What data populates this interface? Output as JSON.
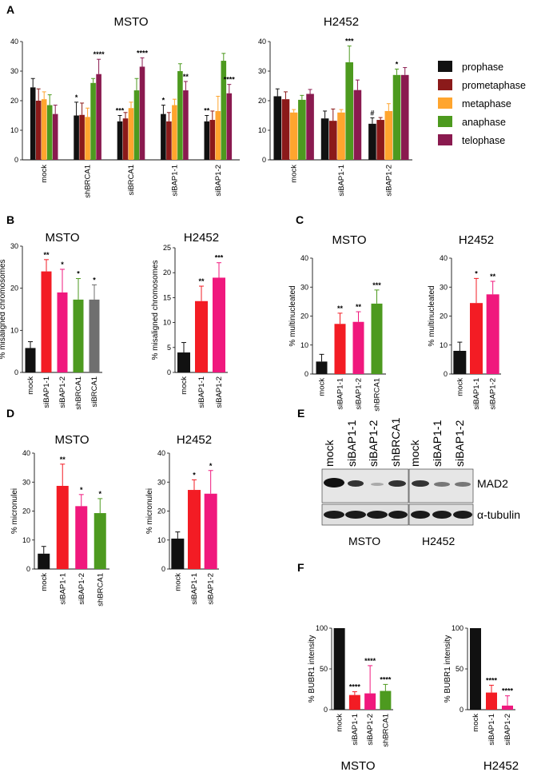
{
  "colors": {
    "black": "#111111",
    "darkred": "#8b1a1a",
    "orange": "#ffa52e",
    "green": "#4d9a1f",
    "maroon": "#8a1a4f",
    "red": "#f31c24",
    "pink": "#f0187d",
    "gray": "#6f6f6f"
  },
  "panels": {
    "A": "A",
    "B": "B",
    "C": "C",
    "D": "D",
    "E": "E",
    "F": "F"
  },
  "legend": [
    "prophase",
    "prometaphase",
    "metaphase",
    "anaphase",
    "telophase"
  ],
  "western": {
    "lanes_msto": [
      "mock",
      "siBAP1-1",
      "siBAP1-2",
      "shBRCA1"
    ],
    "lanes_h2452": [
      "mock",
      "siBAP1-1",
      "siBAP1-2"
    ],
    "row1": "MAD2",
    "row2": "α-tubulin",
    "cell1": "MSTO",
    "cell2": "H2452"
  },
  "chart_data": [
    {
      "id": "A1",
      "type": "bar",
      "title": "MSTO",
      "ylabel": "",
      "ylim": [
        0,
        40
      ],
      "ticks": [
        0,
        10,
        20,
        30,
        40
      ],
      "categories": [
        "mock",
        "shBRCA1",
        "siBRCA1",
        "siBAP1-1",
        "siBAP1-2"
      ],
      "series": [
        {
          "name": "prophase",
          "color": "black",
          "values": [
            24.5,
            15,
            13,
            15.5,
            13
          ],
          "err": [
            3,
            4.5,
            2,
            3,
            2
          ],
          "sig": [
            "",
            "*",
            "***",
            "*",
            "**"
          ]
        },
        {
          "name": "prometaphase",
          "color": "darkred",
          "values": [
            20,
            15.2,
            14,
            13,
            13.5
          ],
          "err": [
            4,
            4,
            2,
            3,
            3
          ],
          "sig": [
            "",
            "",
            "",
            "",
            ""
          ]
        },
        {
          "name": "metaphase",
          "color": "orange",
          "values": [
            20.5,
            14.5,
            17.5,
            18.5,
            16.5
          ],
          "err": [
            2.5,
            3,
            2,
            2,
            5
          ],
          "sig": [
            "",
            "",
            "",
            "",
            ""
          ]
        },
        {
          "name": "anaphase",
          "color": "green",
          "values": [
            18.5,
            26,
            23.5,
            30,
            33.5
          ],
          "err": [
            3.5,
            1.5,
            4,
            2.5,
            2.5
          ],
          "sig": [
            "",
            "",
            "",
            "",
            ""
          ]
        },
        {
          "name": "telophase",
          "color": "maroon",
          "values": [
            15.5,
            29,
            31.5,
            23.5,
            22.5
          ],
          "err": [
            3,
            5,
            3,
            3,
            3
          ],
          "sig": [
            "",
            "****",
            "****",
            "**",
            "****"
          ]
        }
      ]
    },
    {
      "id": "A2",
      "type": "bar",
      "title": "H2452",
      "ylabel": "",
      "ylim": [
        0,
        40
      ],
      "ticks": [
        0,
        10,
        20,
        30,
        40
      ],
      "categories": [
        "mock",
        "siBAP1-1",
        "siBAP1-2"
      ],
      "series": [
        {
          "name": "prophase",
          "color": "black",
          "values": [
            21.5,
            14,
            12.2
          ],
          "err": [
            2.5,
            2.5,
            2
          ],
          "sig": [
            "",
            "",
            "#"
          ]
        },
        {
          "name": "prometaphase",
          "color": "darkred",
          "values": [
            20.5,
            13.2,
            13.5
          ],
          "err": [
            2.5,
            4,
            0.8
          ],
          "sig": [
            "",
            "",
            ""
          ]
        },
        {
          "name": "metaphase",
          "color": "orange",
          "values": [
            16,
            16,
            16.5
          ],
          "err": [
            1,
            1,
            2.5
          ],
          "sig": [
            "",
            "",
            ""
          ]
        },
        {
          "name": "anaphase",
          "color": "green",
          "values": [
            20.3,
            33,
            28.7
          ],
          "err": [
            1.5,
            5.5,
            2
          ],
          "sig": [
            "",
            "***",
            "*"
          ]
        },
        {
          "name": "telophase",
          "color": "maroon",
          "values": [
            22.3,
            23.6,
            28.7
          ],
          "err": [
            1.5,
            3.4,
            2.5
          ],
          "sig": [
            "",
            "",
            ""
          ]
        }
      ]
    },
    {
      "id": "B1",
      "type": "bar",
      "title": "MSTO",
      "ylabel": "% misaligned chromosomes",
      "ylim": [
        0,
        30
      ],
      "ticks": [
        0,
        10,
        20,
        30
      ],
      "categories": [
        "mock",
        "siBAP1-1",
        "siBAP1-2",
        "shBRCA1",
        "siBRCA1"
      ],
      "colors": [
        "black",
        "red",
        "pink",
        "green",
        "gray"
      ],
      "values": [
        5.8,
        24,
        19,
        17.3,
        17.3
      ],
      "err": [
        1.5,
        2.8,
        5.5,
        5,
        3.5
      ],
      "sig": [
        "",
        "**",
        "*",
        "*",
        "*"
      ]
    },
    {
      "id": "B2",
      "type": "bar",
      "title": "H2452",
      "ylabel": "% misaligned chromosomes",
      "ylim": [
        0,
        25
      ],
      "ticks": [
        0,
        5,
        10,
        15,
        20,
        25
      ],
      "categories": [
        "mock",
        "siBAP1-1",
        "siBAP1-2"
      ],
      "colors": [
        "black",
        "red",
        "pink"
      ],
      "values": [
        4,
        14.3,
        19
      ],
      "err": [
        2,
        3,
        3
      ],
      "sig": [
        "",
        "**",
        "***"
      ]
    },
    {
      "id": "C1",
      "type": "bar",
      "title": "MSTO",
      "ylabel": "% multinucleated",
      "ylim": [
        0,
        40
      ],
      "ticks": [
        0,
        10,
        20,
        30,
        40
      ],
      "categories": [
        "mock",
        "siBAP1-1",
        "siBAP1-2",
        "shBRCA1"
      ],
      "colors": [
        "black",
        "red",
        "pink",
        "green"
      ],
      "values": [
        4.3,
        17.3,
        18,
        24.3
      ],
      "err": [
        2.5,
        3.7,
        3.5,
        4.7
      ],
      "sig": [
        "",
        "**",
        "**",
        "***"
      ]
    },
    {
      "id": "C2",
      "type": "bar",
      "title": "H2452",
      "ylabel": "% multinucleated",
      "ylim": [
        0,
        40
      ],
      "ticks": [
        0,
        10,
        20,
        30,
        40
      ],
      "categories": [
        "mock",
        "siBAP1-1",
        "siBAP1-2"
      ],
      "colors": [
        "black",
        "red",
        "pink"
      ],
      "values": [
        8,
        24.5,
        27.5
      ],
      "err": [
        3,
        8.5,
        4.5
      ],
      "sig": [
        "",
        "*",
        "**"
      ]
    },
    {
      "id": "D1",
      "type": "bar",
      "title": "MSTO",
      "ylabel": "% micronulei",
      "ylim": [
        0,
        40
      ],
      "ticks": [
        0,
        10,
        20,
        30,
        40
      ],
      "categories": [
        "mock",
        "siBAP1-1",
        "siBAP1-2",
        "shBRCA1"
      ],
      "colors": [
        "black",
        "red",
        "pink",
        "green"
      ],
      "values": [
        5.3,
        28.7,
        21.7,
        19.3
      ],
      "err": [
        2.5,
        7.5,
        4,
        5
      ],
      "sig": [
        "",
        "**",
        "*",
        "*"
      ]
    },
    {
      "id": "D2",
      "type": "bar",
      "title": "H2452",
      "ylabel": "% micronulei",
      "ylim": [
        0,
        40
      ],
      "ticks": [
        0,
        10,
        20,
        30,
        40
      ],
      "categories": [
        "mock",
        "siBAP1-1",
        "siBAP1-2"
      ],
      "colors": [
        "black",
        "red",
        "pink"
      ],
      "values": [
        10.5,
        27.3,
        26
      ],
      "err": [
        2.3,
        3.5,
        8
      ],
      "sig": [
        "",
        "*",
        "*"
      ]
    },
    {
      "id": "F1",
      "type": "bar",
      "title": "",
      "ylabel": "% BUBR1 intensity",
      "ylim": [
        0,
        100
      ],
      "ticks": [
        0,
        50,
        100
      ],
      "categories": [
        "mock",
        "siBAP1-1",
        "siBAP1-2",
        "shBRCA1"
      ],
      "colors": [
        "black",
        "red",
        "pink",
        "green"
      ],
      "values": [
        100,
        18,
        20,
        23
      ],
      "err": [
        0,
        4,
        34,
        8
      ],
      "sig": [
        "",
        "****",
        "****",
        "****"
      ]
    },
    {
      "id": "F2",
      "type": "bar",
      "title": "",
      "ylabel": "% BUBR1 intensity",
      "ylim": [
        0,
        100
      ],
      "ticks": [
        0,
        50,
        100
      ],
      "categories": [
        "mock",
        "siBAP1-1",
        "siBAP1-2"
      ],
      "colors": [
        "black",
        "red",
        "pink"
      ],
      "values": [
        100,
        21,
        5
      ],
      "err": [
        0,
        9,
        12
      ],
      "sig": [
        "",
        "****",
        "****"
      ]
    }
  ],
  "f_labels": {
    "left": "MSTO",
    "right": "H2452"
  }
}
